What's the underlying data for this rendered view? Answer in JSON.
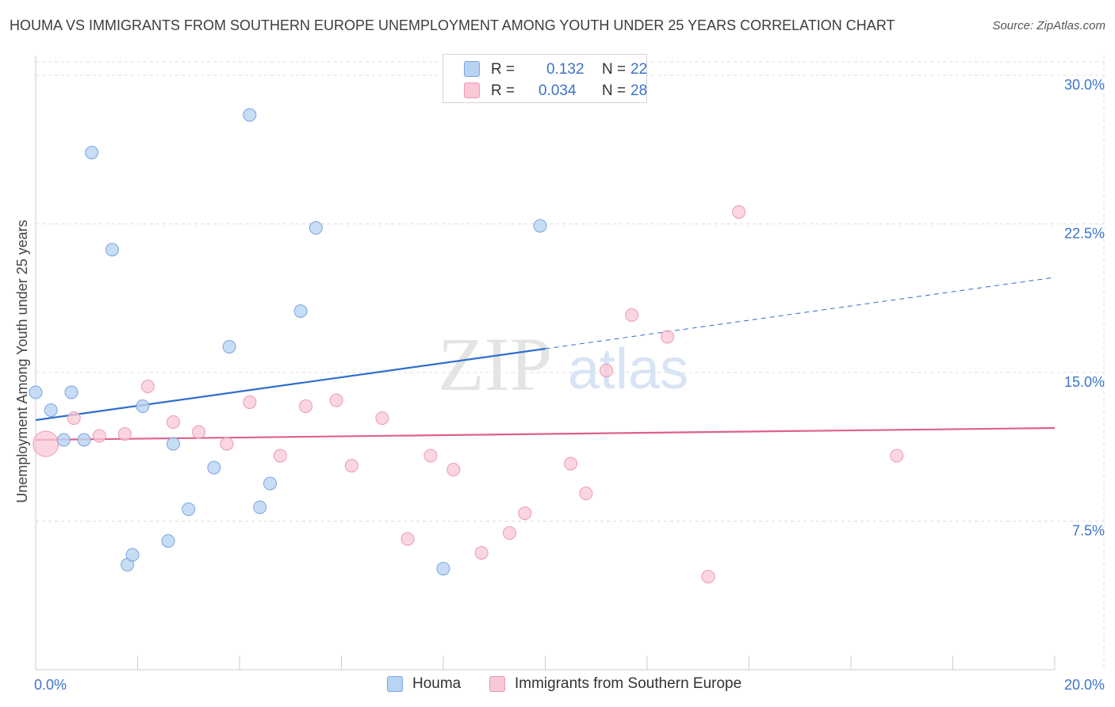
{
  "title": "HOUMA VS IMMIGRANTS FROM SOUTHERN EUROPE UNEMPLOYMENT AMONG YOUTH UNDER 25 YEARS CORRELATION CHART",
  "source": "Source: ZipAtlas.com",
  "watermark": {
    "zip": "ZIP",
    "atlas": "atlas"
  },
  "legend": {
    "series1": {
      "r_label": "R =",
      "r_value": "0.132",
      "n_label": "N =",
      "n_value": "22"
    },
    "series2": {
      "r_label": "R =",
      "r_value": "0.034",
      "n_label": "N =",
      "n_value": "28"
    }
  },
  "colors": {
    "blue_fill": "#b9d3f2",
    "blue_stroke": "#7aa6de",
    "blue_line": "#2e6fcf",
    "pink_fill": "#f9c8d6",
    "pink_stroke": "#eb9ab2",
    "pink_line": "#e0608a",
    "tick_text": "#3b74c9",
    "grid": "#dddddd"
  },
  "chart_data": {
    "type": "scatter",
    "title": "HOUMA VS IMMIGRANTS FROM SOUTHERN EUROPE UNEMPLOYMENT AMONG YOUTH UNDER 25 YEARS CORRELATION CHART",
    "xlabel": "",
    "ylabel": "Unemployment Among Youth under 25 years",
    "xlim": [
      0,
      20
    ],
    "ylim": [
      0,
      31
    ],
    "x_tick_labels": [
      {
        "value": 0,
        "label": "0.0%"
      },
      {
        "value": 20,
        "label": "20.0%"
      }
    ],
    "y_ticks": [
      {
        "value": 7.5,
        "label": "7.5%"
      },
      {
        "value": 15,
        "label": "15.0%"
      },
      {
        "value": 22.5,
        "label": "22.5%"
      },
      {
        "value": 30,
        "label": "30.0%"
      }
    ],
    "grid": true,
    "series": [
      {
        "name": "Houma",
        "r": 0.132,
        "n": 22,
        "points": [
          {
            "x": 0.0,
            "y": 14.0
          },
          {
            "x": 0.3,
            "y": 13.1
          },
          {
            "x": 0.55,
            "y": 11.6
          },
          {
            "x": 0.7,
            "y": 14.0
          },
          {
            "x": 0.95,
            "y": 11.6
          },
          {
            "x": 1.1,
            "y": 26.1
          },
          {
            "x": 1.5,
            "y": 21.2
          },
          {
            "x": 1.8,
            "y": 5.3
          },
          {
            "x": 1.9,
            "y": 5.8
          },
          {
            "x": 2.1,
            "y": 13.3
          },
          {
            "x": 2.6,
            "y": 6.5
          },
          {
            "x": 2.7,
            "y": 11.4
          },
          {
            "x": 3.0,
            "y": 8.1
          },
          {
            "x": 3.5,
            "y": 10.2
          },
          {
            "x": 3.8,
            "y": 16.3
          },
          {
            "x": 4.2,
            "y": 28.0
          },
          {
            "x": 4.4,
            "y": 8.2
          },
          {
            "x": 4.6,
            "y": 9.4
          },
          {
            "x": 5.2,
            "y": 18.1
          },
          {
            "x": 5.5,
            "y": 22.3
          },
          {
            "x": 8.0,
            "y": 5.1
          },
          {
            "x": 9.9,
            "y": 22.4
          }
        ],
        "trend": {
          "x0": 0.0,
          "y0": 12.6,
          "x1": 10.0,
          "y1": 16.2,
          "dashed_to_x": 20.0,
          "dashed_to_y": 19.8
        }
      },
      {
        "name": "Immigrants from Southern Europe",
        "r": 0.034,
        "n": 28,
        "points": [
          {
            "x": 0.2,
            "y": 11.4
          },
          {
            "x": 0.75,
            "y": 12.7
          },
          {
            "x": 1.25,
            "y": 11.8
          },
          {
            "x": 1.75,
            "y": 11.9
          },
          {
            "x": 2.2,
            "y": 14.3
          },
          {
            "x": 2.7,
            "y": 12.5
          },
          {
            "x": 3.2,
            "y": 12.0
          },
          {
            "x": 3.75,
            "y": 11.4
          },
          {
            "x": 4.2,
            "y": 13.5
          },
          {
            "x": 4.8,
            "y": 10.8
          },
          {
            "x": 5.3,
            "y": 13.3
          },
          {
            "x": 5.9,
            "y": 13.6
          },
          {
            "x": 6.2,
            "y": 10.3
          },
          {
            "x": 6.8,
            "y": 12.7
          },
          {
            "x": 7.3,
            "y": 6.6
          },
          {
            "x": 7.75,
            "y": 10.8
          },
          {
            "x": 8.2,
            "y": 10.1
          },
          {
            "x": 8.75,
            "y": 5.9
          },
          {
            "x": 9.3,
            "y": 6.9
          },
          {
            "x": 9.6,
            "y": 7.9
          },
          {
            "x": 10.5,
            "y": 10.4
          },
          {
            "x": 10.8,
            "y": 8.9
          },
          {
            "x": 11.2,
            "y": 15.1
          },
          {
            "x": 11.7,
            "y": 17.9
          },
          {
            "x": 12.4,
            "y": 16.8
          },
          {
            "x": 13.2,
            "y": 4.7
          },
          {
            "x": 13.8,
            "y": 23.1
          },
          {
            "x": 16.9,
            "y": 10.8
          }
        ],
        "trend": {
          "x0": 0.0,
          "y0": 11.6,
          "x1": 20.0,
          "y1": 12.2
        }
      }
    ]
  },
  "bottom_legend": {
    "series1_label": "Houma",
    "series2_label": "Immigrants from Southern Europe"
  }
}
